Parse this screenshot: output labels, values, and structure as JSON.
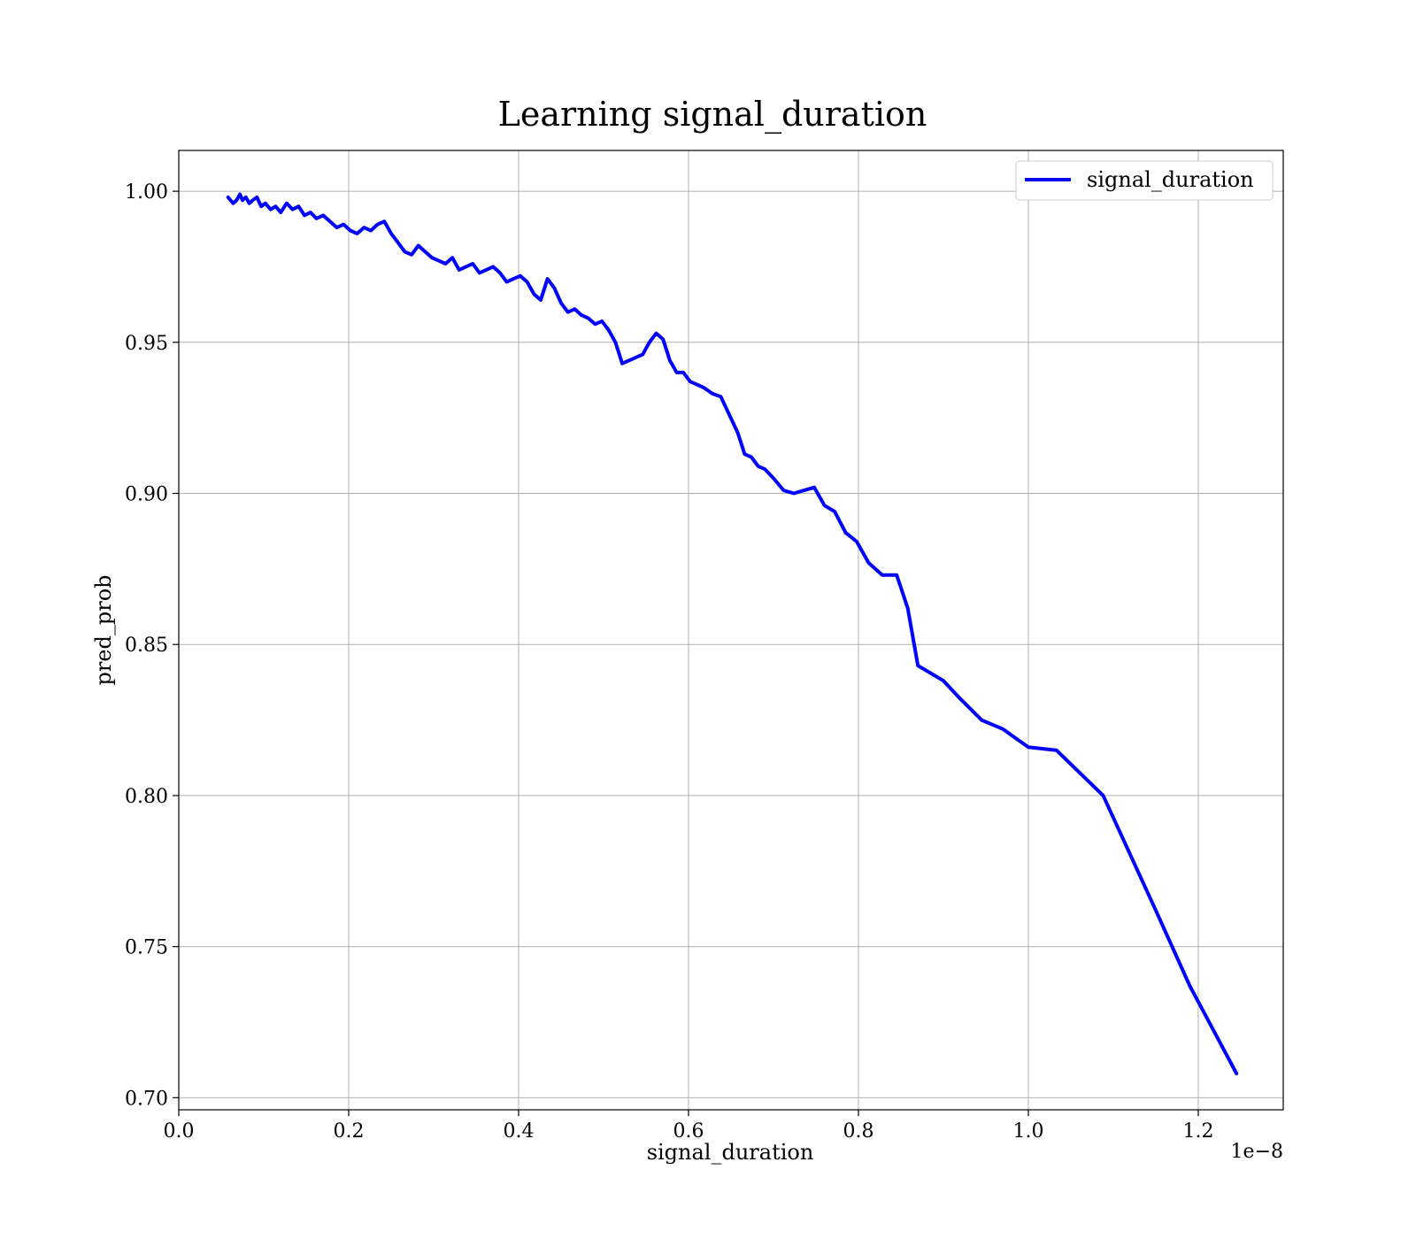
{
  "chart_data": {
    "type": "line",
    "title": "Learning signal_duration",
    "xlabel": "signal_duration",
    "ylabel": "pred_prob",
    "x_offset_label": "1e−8",
    "xlim": [
      0.0,
      1.3
    ],
    "ylim": [
      0.696,
      1.0135
    ],
    "xticks": [
      0.0,
      0.2,
      0.4,
      0.6,
      0.8,
      1.0,
      1.2
    ],
    "xtick_labels": [
      "0.0",
      "0.2",
      "0.4",
      "0.6",
      "0.8",
      "1.0",
      "1.2"
    ],
    "yticks": [
      0.7,
      0.75,
      0.8,
      0.85,
      0.9,
      0.95,
      1.0
    ],
    "ytick_labels": [
      "0.70",
      "0.75",
      "0.80",
      "0.85",
      "0.90",
      "0.95",
      "1.00"
    ],
    "grid": true,
    "legend_position": "top-right",
    "series": [
      {
        "name": "signal_duration",
        "color": "#0000ff",
        "x": [
          0.058,
          0.064,
          0.068,
          0.072,
          0.075,
          0.079,
          0.083,
          0.087,
          0.092,
          0.097,
          0.102,
          0.108,
          0.114,
          0.12,
          0.127,
          0.134,
          0.141,
          0.148,
          0.155,
          0.162,
          0.17,
          0.178,
          0.186,
          0.194,
          0.202,
          0.21,
          0.218,
          0.226,
          0.234,
          0.242,
          0.25,
          0.258,
          0.266,
          0.274,
          0.282,
          0.29,
          0.298,
          0.306,
          0.314,
          0.322,
          0.33,
          0.338,
          0.346,
          0.354,
          0.362,
          0.37,
          0.378,
          0.386,
          0.394,
          0.402,
          0.41,
          0.418,
          0.426,
          0.434,
          0.442,
          0.45,
          0.458,
          0.466,
          0.474,
          0.482,
          0.49,
          0.498,
          0.506,
          0.514,
          0.522,
          0.53,
          0.538,
          0.546,
          0.554,
          0.562,
          0.57,
          0.578,
          0.586,
          0.594,
          0.602,
          0.61,
          0.618,
          0.628,
          0.638,
          0.648,
          0.658,
          0.666,
          0.674,
          0.682,
          0.69,
          0.7,
          0.712,
          0.724,
          0.736,
          0.748,
          0.76,
          0.772,
          0.785,
          0.798,
          0.812,
          0.828,
          0.845,
          0.858,
          0.87,
          0.9,
          0.92,
          0.945,
          0.97,
          1.0,
          1.033,
          1.088,
          1.15,
          1.19,
          1.245
        ],
        "y": [
          0.998,
          0.996,
          0.997,
          0.999,
          0.997,
          0.998,
          0.996,
          0.997,
          0.998,
          0.995,
          0.996,
          0.994,
          0.995,
          0.993,
          0.996,
          0.994,
          0.995,
          0.992,
          0.993,
          0.991,
          0.992,
          0.99,
          0.988,
          0.989,
          0.987,
          0.986,
          0.988,
          0.987,
          0.989,
          0.99,
          0.986,
          0.983,
          0.98,
          0.979,
          0.982,
          0.98,
          0.978,
          0.977,
          0.976,
          0.978,
          0.974,
          0.975,
          0.976,
          0.973,
          0.974,
          0.975,
          0.973,
          0.97,
          0.971,
          0.972,
          0.97,
          0.966,
          0.964,
          0.971,
          0.968,
          0.963,
          0.96,
          0.961,
          0.959,
          0.958,
          0.956,
          0.957,
          0.954,
          0.95,
          0.943,
          0.944,
          0.945,
          0.946,
          0.95,
          0.953,
          0.951,
          0.944,
          0.94,
          0.94,
          0.937,
          0.936,
          0.935,
          0.933,
          0.932,
          0.926,
          0.92,
          0.913,
          0.912,
          0.909,
          0.908,
          0.905,
          0.901,
          0.9,
          0.901,
          0.902,
          0.896,
          0.894,
          0.887,
          0.884,
          0.877,
          0.873,
          0.873,
          0.862,
          0.843,
          0.838,
          0.832,
          0.825,
          0.822,
          0.816,
          0.815,
          0.8,
          0.762,
          0.737,
          0.708
        ]
      }
    ]
  }
}
